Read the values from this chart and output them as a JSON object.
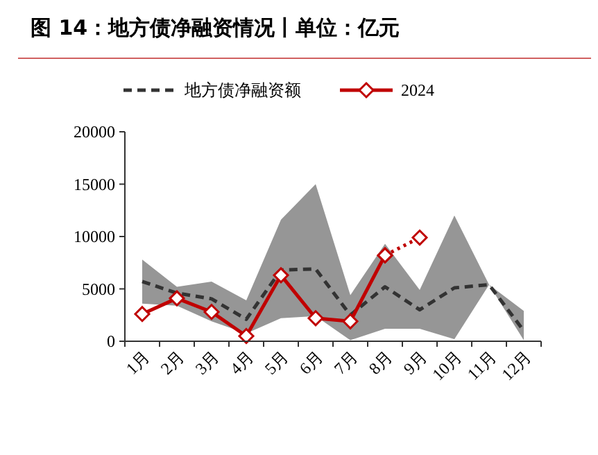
{
  "chart_data": {
    "type": "line",
    "title": "图 14：地方债净融资情况丨单位：亿元",
    "categories": [
      "1月",
      "2月",
      "3月",
      "4月",
      "5月",
      "6月",
      "7月",
      "8月",
      "9月",
      "10月",
      "11月",
      "12月"
    ],
    "series": [
      {
        "name": "地方债净融资额",
        "color": "#333333",
        "line_style": "dashed",
        "marker": "none",
        "values": [
          5700,
          4600,
          4050,
          2100,
          6800,
          6900,
          2500,
          5200,
          3000,
          5100,
          5400,
          1000
        ],
        "lower": [
          3600,
          3400,
          1900,
          750,
          2200,
          2400,
          100,
          1200,
          1200,
          200,
          5400,
          100
        ],
        "upper": [
          7800,
          5200,
          5700,
          3900,
          11600,
          15000,
          4400,
          9300,
          4900,
          12000,
          5400,
          2900
        ]
      },
      {
        "name": "2024",
        "color": "#c00000",
        "line_style": "solid",
        "marker": "diamond",
        "values": [
          2600,
          4100,
          2800,
          500,
          6300,
          2200,
          1900,
          8200,
          null,
          null,
          null,
          null
        ]
      },
      {
        "color": "#c00000",
        "line_style": "dotted",
        "marker": "diamond",
        "values": [
          null,
          null,
          null,
          null,
          null,
          null,
          null,
          8200,
          9900,
          null,
          null,
          null
        ]
      }
    ],
    "ylim": [
      0,
      20000
    ],
    "yticks": [
      0,
      5000,
      10000,
      15000,
      20000
    ],
    "grid": false,
    "legend": "top"
  }
}
